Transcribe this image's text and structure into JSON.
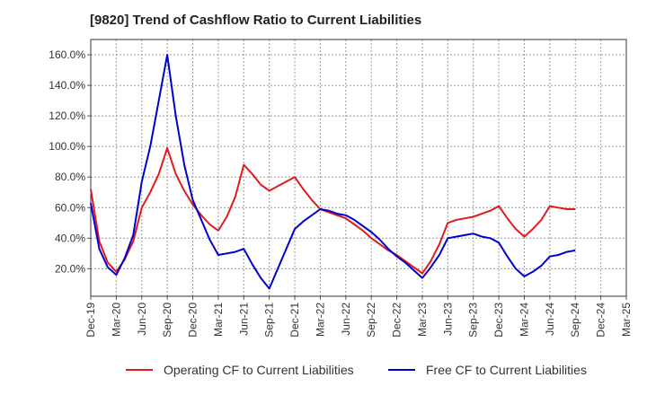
{
  "chart_data": {
    "type": "line",
    "title": "[9820]  Trend of Cashflow Ratio to Current Liabilities",
    "xlabel": "",
    "ylabel": "",
    "ylim": [
      2,
      170
    ],
    "y_ticks": [
      20,
      40,
      60,
      80,
      100,
      120,
      140,
      160
    ],
    "y_tick_labels": [
      "20.0%",
      "40.0%",
      "60.0%",
      "80.0%",
      "100.0%",
      "120.0%",
      "140.0%",
      "160.0%"
    ],
    "x_start": "Dec-19",
    "x_end": "Mar-25",
    "x_tick_labels": [
      "Dec-19",
      "Mar-20",
      "Jun-20",
      "Sep-20",
      "Dec-20",
      "Mar-21",
      "Jun-21",
      "Sep-21",
      "Dec-21",
      "Mar-22",
      "Jun-22",
      "Sep-22",
      "Dec-22",
      "Mar-23",
      "Jun-23",
      "Sep-23",
      "Dec-23",
      "Mar-24",
      "Jun-24",
      "Sep-24",
      "Dec-24",
      "Mar-25"
    ],
    "grid": true,
    "legend_position": "bottom",
    "series": [
      {
        "name": "Operating CF to Current Liabilities",
        "color": "#e31a1c",
        "points": [
          [
            "Dec-19",
            72
          ],
          [
            "Jan-20",
            38
          ],
          [
            "Feb-20",
            24
          ],
          [
            "Mar-20",
            18
          ],
          [
            "Apr-20",
            26
          ],
          [
            "May-20",
            38
          ],
          [
            "Jun-20",
            60
          ],
          [
            "Jul-20",
            70
          ],
          [
            "Aug-20",
            82
          ],
          [
            "Sep-20",
            99
          ],
          [
            "Oct-20",
            82
          ],
          [
            "Nov-20",
            71
          ],
          [
            "Dec-20",
            62
          ],
          [
            "Jan-21",
            55
          ],
          [
            "Feb-21",
            49
          ],
          [
            "Mar-21",
            45
          ],
          [
            "Apr-21",
            54
          ],
          [
            "May-21",
            67
          ],
          [
            "Jun-21",
            88
          ],
          [
            "Jul-21",
            82
          ],
          [
            "Aug-21",
            75
          ],
          [
            "Sep-21",
            71
          ],
          [
            "Oct-21",
            74
          ],
          [
            "Nov-21",
            77
          ],
          [
            "Dec-21",
            80
          ],
          [
            "Jan-22",
            72
          ],
          [
            "Feb-22",
            65
          ],
          [
            "Mar-22",
            59
          ],
          [
            "Apr-22",
            57
          ],
          [
            "May-22",
            55
          ],
          [
            "Jun-22",
            53
          ],
          [
            "Jul-22",
            49
          ],
          [
            "Aug-22",
            45
          ],
          [
            "Sep-22",
            40
          ],
          [
            "Oct-22",
            36
          ],
          [
            "Nov-22",
            32
          ],
          [
            "Dec-22",
            29
          ],
          [
            "Jan-23",
            25
          ],
          [
            "Feb-23",
            21
          ],
          [
            "Mar-23",
            17
          ],
          [
            "Apr-23",
            25
          ],
          [
            "May-23",
            36
          ],
          [
            "Jun-23",
            50
          ],
          [
            "Jul-23",
            52
          ],
          [
            "Aug-23",
            53
          ],
          [
            "Sep-23",
            54
          ],
          [
            "Oct-23",
            56
          ],
          [
            "Nov-23",
            58
          ],
          [
            "Dec-23",
            61
          ],
          [
            "Jan-24",
            53
          ],
          [
            "Feb-24",
            46
          ],
          [
            "Mar-24",
            41
          ],
          [
            "Apr-24",
            46
          ],
          [
            "May-24",
            52
          ],
          [
            "Jun-24",
            61
          ],
          [
            "Jul-24",
            60
          ],
          [
            "Aug-24",
            59
          ],
          [
            "Sep-24",
            59
          ]
        ]
      },
      {
        "name": "Free CF to Current Liabilities",
        "color": "#0000cc",
        "points": [
          [
            "Dec-19",
            63
          ],
          [
            "Jan-20",
            33
          ],
          [
            "Feb-20",
            21
          ],
          [
            "Mar-20",
            16
          ],
          [
            "Apr-20",
            27
          ],
          [
            "May-20",
            42
          ],
          [
            "Jun-20",
            77
          ],
          [
            "Jul-20",
            100
          ],
          [
            "Aug-20",
            130
          ],
          [
            "Sep-20",
            160
          ],
          [
            "Oct-20",
            120
          ],
          [
            "Nov-20",
            88
          ],
          [
            "Dec-20",
            65
          ],
          [
            "Jan-21",
            52
          ],
          [
            "Feb-21",
            39
          ],
          [
            "Mar-21",
            29
          ],
          [
            "Apr-21",
            30
          ],
          [
            "May-21",
            31
          ],
          [
            "Jun-21",
            33
          ],
          [
            "Jul-21",
            23
          ],
          [
            "Aug-21",
            14
          ],
          [
            "Sep-21",
            7
          ],
          [
            "Oct-21",
            20
          ],
          [
            "Nov-21",
            33
          ],
          [
            "Dec-21",
            46
          ],
          [
            "Jan-22",
            51
          ],
          [
            "Feb-22",
            55
          ],
          [
            "Mar-22",
            59
          ],
          [
            "Apr-22",
            58
          ],
          [
            "May-22",
            56
          ],
          [
            "Jun-22",
            55
          ],
          [
            "Jul-22",
            52
          ],
          [
            "Aug-22",
            48
          ],
          [
            "Sep-22",
            44
          ],
          [
            "Oct-22",
            39
          ],
          [
            "Nov-22",
            33
          ],
          [
            "Dec-22",
            28
          ],
          [
            "Jan-23",
            24
          ],
          [
            "Feb-23",
            19
          ],
          [
            "Mar-23",
            14
          ],
          [
            "Apr-23",
            21
          ],
          [
            "May-23",
            29
          ],
          [
            "Jun-23",
            40
          ],
          [
            "Jul-23",
            41
          ],
          [
            "Aug-23",
            42
          ],
          [
            "Sep-23",
            43
          ],
          [
            "Oct-23",
            41
          ],
          [
            "Nov-23",
            40
          ],
          [
            "Dec-23",
            37
          ],
          [
            "Jan-24",
            28
          ],
          [
            "Feb-24",
            20
          ],
          [
            "Mar-24",
            15
          ],
          [
            "Apr-24",
            18
          ],
          [
            "May-24",
            22
          ],
          [
            "Jun-24",
            28
          ],
          [
            "Jul-24",
            29
          ],
          [
            "Aug-24",
            31
          ],
          [
            "Sep-24",
            32
          ]
        ]
      }
    ]
  }
}
